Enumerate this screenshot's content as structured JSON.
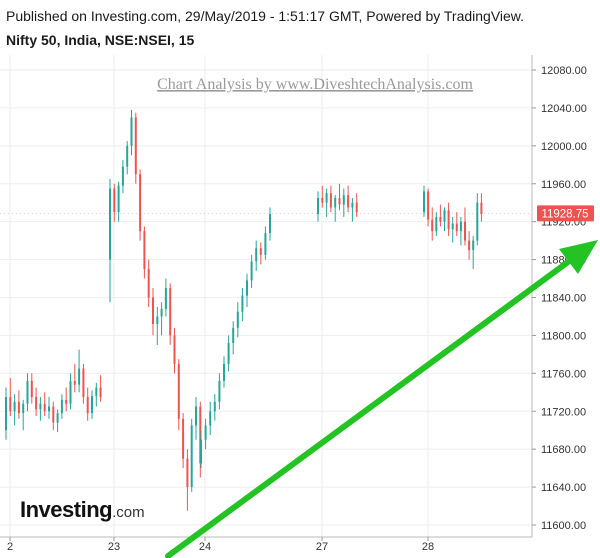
{
  "header": {
    "published": "Published on Investing.com, 29/May/2019 - 1:51:17 GMT, Powered by TradingView.",
    "symbol": "Nifty 50, India, NSE:NSEI, 15"
  },
  "watermark": {
    "text": "Chart Analysis by www.DiveshtechAnalysis.com"
  },
  "logo": {
    "main": "Investing",
    "suffix": ".com"
  },
  "colors": {
    "up": "#26a69a",
    "down": "#ef5350",
    "price_tag": "#ef5350",
    "arrow": "#22c322",
    "grid": "#eeeeee"
  },
  "chart_data": {
    "type": "candlestick",
    "interval": "15",
    "ylim": [
      11585,
      12100
    ],
    "y_ticks": [
      "12080.00",
      "12040.00",
      "12000.00",
      "11960.00",
      "11920.00",
      "11880.00",
      "11840.00",
      "11800.00",
      "11760.00",
      "11720.00",
      "11680.00",
      "11640.00",
      "11600.00"
    ],
    "x_tick_labels": [
      "2",
      "23",
      "24",
      "27",
      "28"
    ],
    "last_price": "11928.75",
    "sessions": [
      {
        "label": "2",
        "ohlc": [
          [
            11700,
            11745,
            11690,
            11735
          ],
          [
            11735,
            11755,
            11715,
            11720
          ],
          [
            11720,
            11738,
            11705,
            11730
          ],
          [
            11730,
            11742,
            11712,
            11718
          ],
          [
            11718,
            11732,
            11700,
            11728
          ],
          [
            11728,
            11760,
            11720,
            11752
          ],
          [
            11752,
            11760,
            11728,
            11735
          ],
          [
            11735,
            11745,
            11715,
            11722
          ],
          [
            11722,
            11735,
            11710,
            11728
          ],
          [
            11728,
            11740,
            11715,
            11720
          ],
          [
            11720,
            11735,
            11712,
            11725
          ],
          [
            11725,
            11730,
            11700,
            11708
          ],
          [
            11708,
            11722,
            11698,
            11718
          ],
          [
            11718,
            11738,
            11712,
            11732
          ],
          [
            11732,
            11745,
            11720,
            11728
          ],
          [
            11728,
            11760,
            11722,
            11752
          ],
          [
            11752,
            11770,
            11740,
            11748
          ],
          [
            11748,
            11785,
            11740,
            11765
          ],
          [
            11765,
            11770,
            11728,
            11735
          ],
          [
            11735,
            11745,
            11710,
            11718
          ],
          [
            11718,
            11742,
            11712,
            11736
          ],
          [
            11736,
            11750,
            11725,
            11745
          ],
          [
            11745,
            11758,
            11730,
            11735
          ]
        ]
      },
      {
        "label": "23",
        "ohlc": [
          [
            11880,
            11965,
            11835,
            11955
          ],
          [
            11955,
            11960,
            11920,
            11930
          ],
          [
            11930,
            11962,
            11920,
            11958
          ],
          [
            11958,
            11985,
            11950,
            11978
          ],
          [
            11978,
            12005,
            11970,
            12000
          ],
          [
            12000,
            12038,
            11990,
            12030
          ],
          [
            12030,
            12035,
            11960,
            11970
          ],
          [
            11970,
            11975,
            11900,
            11910
          ],
          [
            11910,
            11915,
            11860,
            11870
          ],
          [
            11870,
            11880,
            11830,
            11840
          ],
          [
            11840,
            11850,
            11800,
            11812
          ],
          [
            11812,
            11830,
            11790,
            11820
          ],
          [
            11820,
            11835,
            11800,
            11828
          ],
          [
            11828,
            11860,
            11820,
            11850
          ],
          [
            11850,
            11855,
            11790,
            11800
          ],
          [
            11800,
            11808,
            11760,
            11770
          ],
          [
            11770,
            11775,
            11700,
            11712
          ],
          [
            11712,
            11718,
            11660,
            11670
          ],
          [
            11670,
            11680,
            11615,
            11640
          ],
          [
            11640,
            11712,
            11635,
            11705
          ],
          [
            11705,
            11735,
            11690,
            11725
          ],
          [
            11725,
            11730,
            11650,
            11665
          ]
        ]
      },
      {
        "label": "24",
        "ohlc": [
          [
            11665,
            11700,
            11660,
            11690
          ],
          [
            11690,
            11712,
            11680,
            11705
          ],
          [
            11705,
            11730,
            11695,
            11720
          ],
          [
            11720,
            11738,
            11710,
            11730
          ],
          [
            11730,
            11760,
            11722,
            11752
          ],
          [
            11752,
            11778,
            11745,
            11770
          ],
          [
            11770,
            11800,
            11762,
            11792
          ],
          [
            11792,
            11815,
            11780,
            11808
          ],
          [
            11808,
            11835,
            11798,
            11825
          ],
          [
            11825,
            11850,
            11815,
            11842
          ],
          [
            11842,
            11865,
            11830,
            11858
          ],
          [
            11858,
            11885,
            11850,
            11878
          ],
          [
            11878,
            11900,
            11868,
            11892
          ],
          [
            11892,
            11898,
            11875,
            11885
          ],
          [
            11885,
            11915,
            11880,
            11908
          ],
          [
            11908,
            11935,
            11900,
            11928
          ]
        ]
      },
      {
        "label": "27",
        "ohlc": [
          [
            11928,
            11952,
            11920,
            11945
          ],
          [
            11945,
            11958,
            11935,
            11940
          ],
          [
            11940,
            11955,
            11925,
            11950
          ],
          [
            11950,
            11958,
            11930,
            11935
          ],
          [
            11935,
            11948,
            11920,
            11945
          ],
          [
            11945,
            11960,
            11932,
            11938
          ],
          [
            11938,
            11955,
            11925,
            11948
          ],
          [
            11948,
            11958,
            11930,
            11935
          ],
          [
            11935,
            11945,
            11920,
            11940
          ],
          [
            11940,
            11950,
            11925,
            11930
          ]
        ]
      },
      {
        "label": "28",
        "ohlc": [
          [
            11930,
            11958,
            11925,
            11952
          ],
          [
            11952,
            11955,
            11915,
            11922
          ],
          [
            11922,
            11935,
            11900,
            11910
          ],
          [
            11910,
            11930,
            11905,
            11925
          ],
          [
            11925,
            11938,
            11915,
            11920
          ],
          [
            11920,
            11935,
            11910,
            11932
          ],
          [
            11932,
            11940,
            11905,
            11912
          ],
          [
            11912,
            11925,
            11898,
            11918
          ],
          [
            11918,
            11930,
            11905,
            11910
          ],
          [
            11910,
            11925,
            11895,
            11920
          ],
          [
            11920,
            11935,
            11895,
            11900
          ],
          [
            11900,
            11910,
            11880,
            11890
          ],
          [
            11890,
            11905,
            11870,
            11900
          ],
          [
            11900,
            11950,
            11895,
            11940
          ],
          [
            11940,
            11950,
            11920,
            11928
          ]
        ]
      }
    ]
  }
}
